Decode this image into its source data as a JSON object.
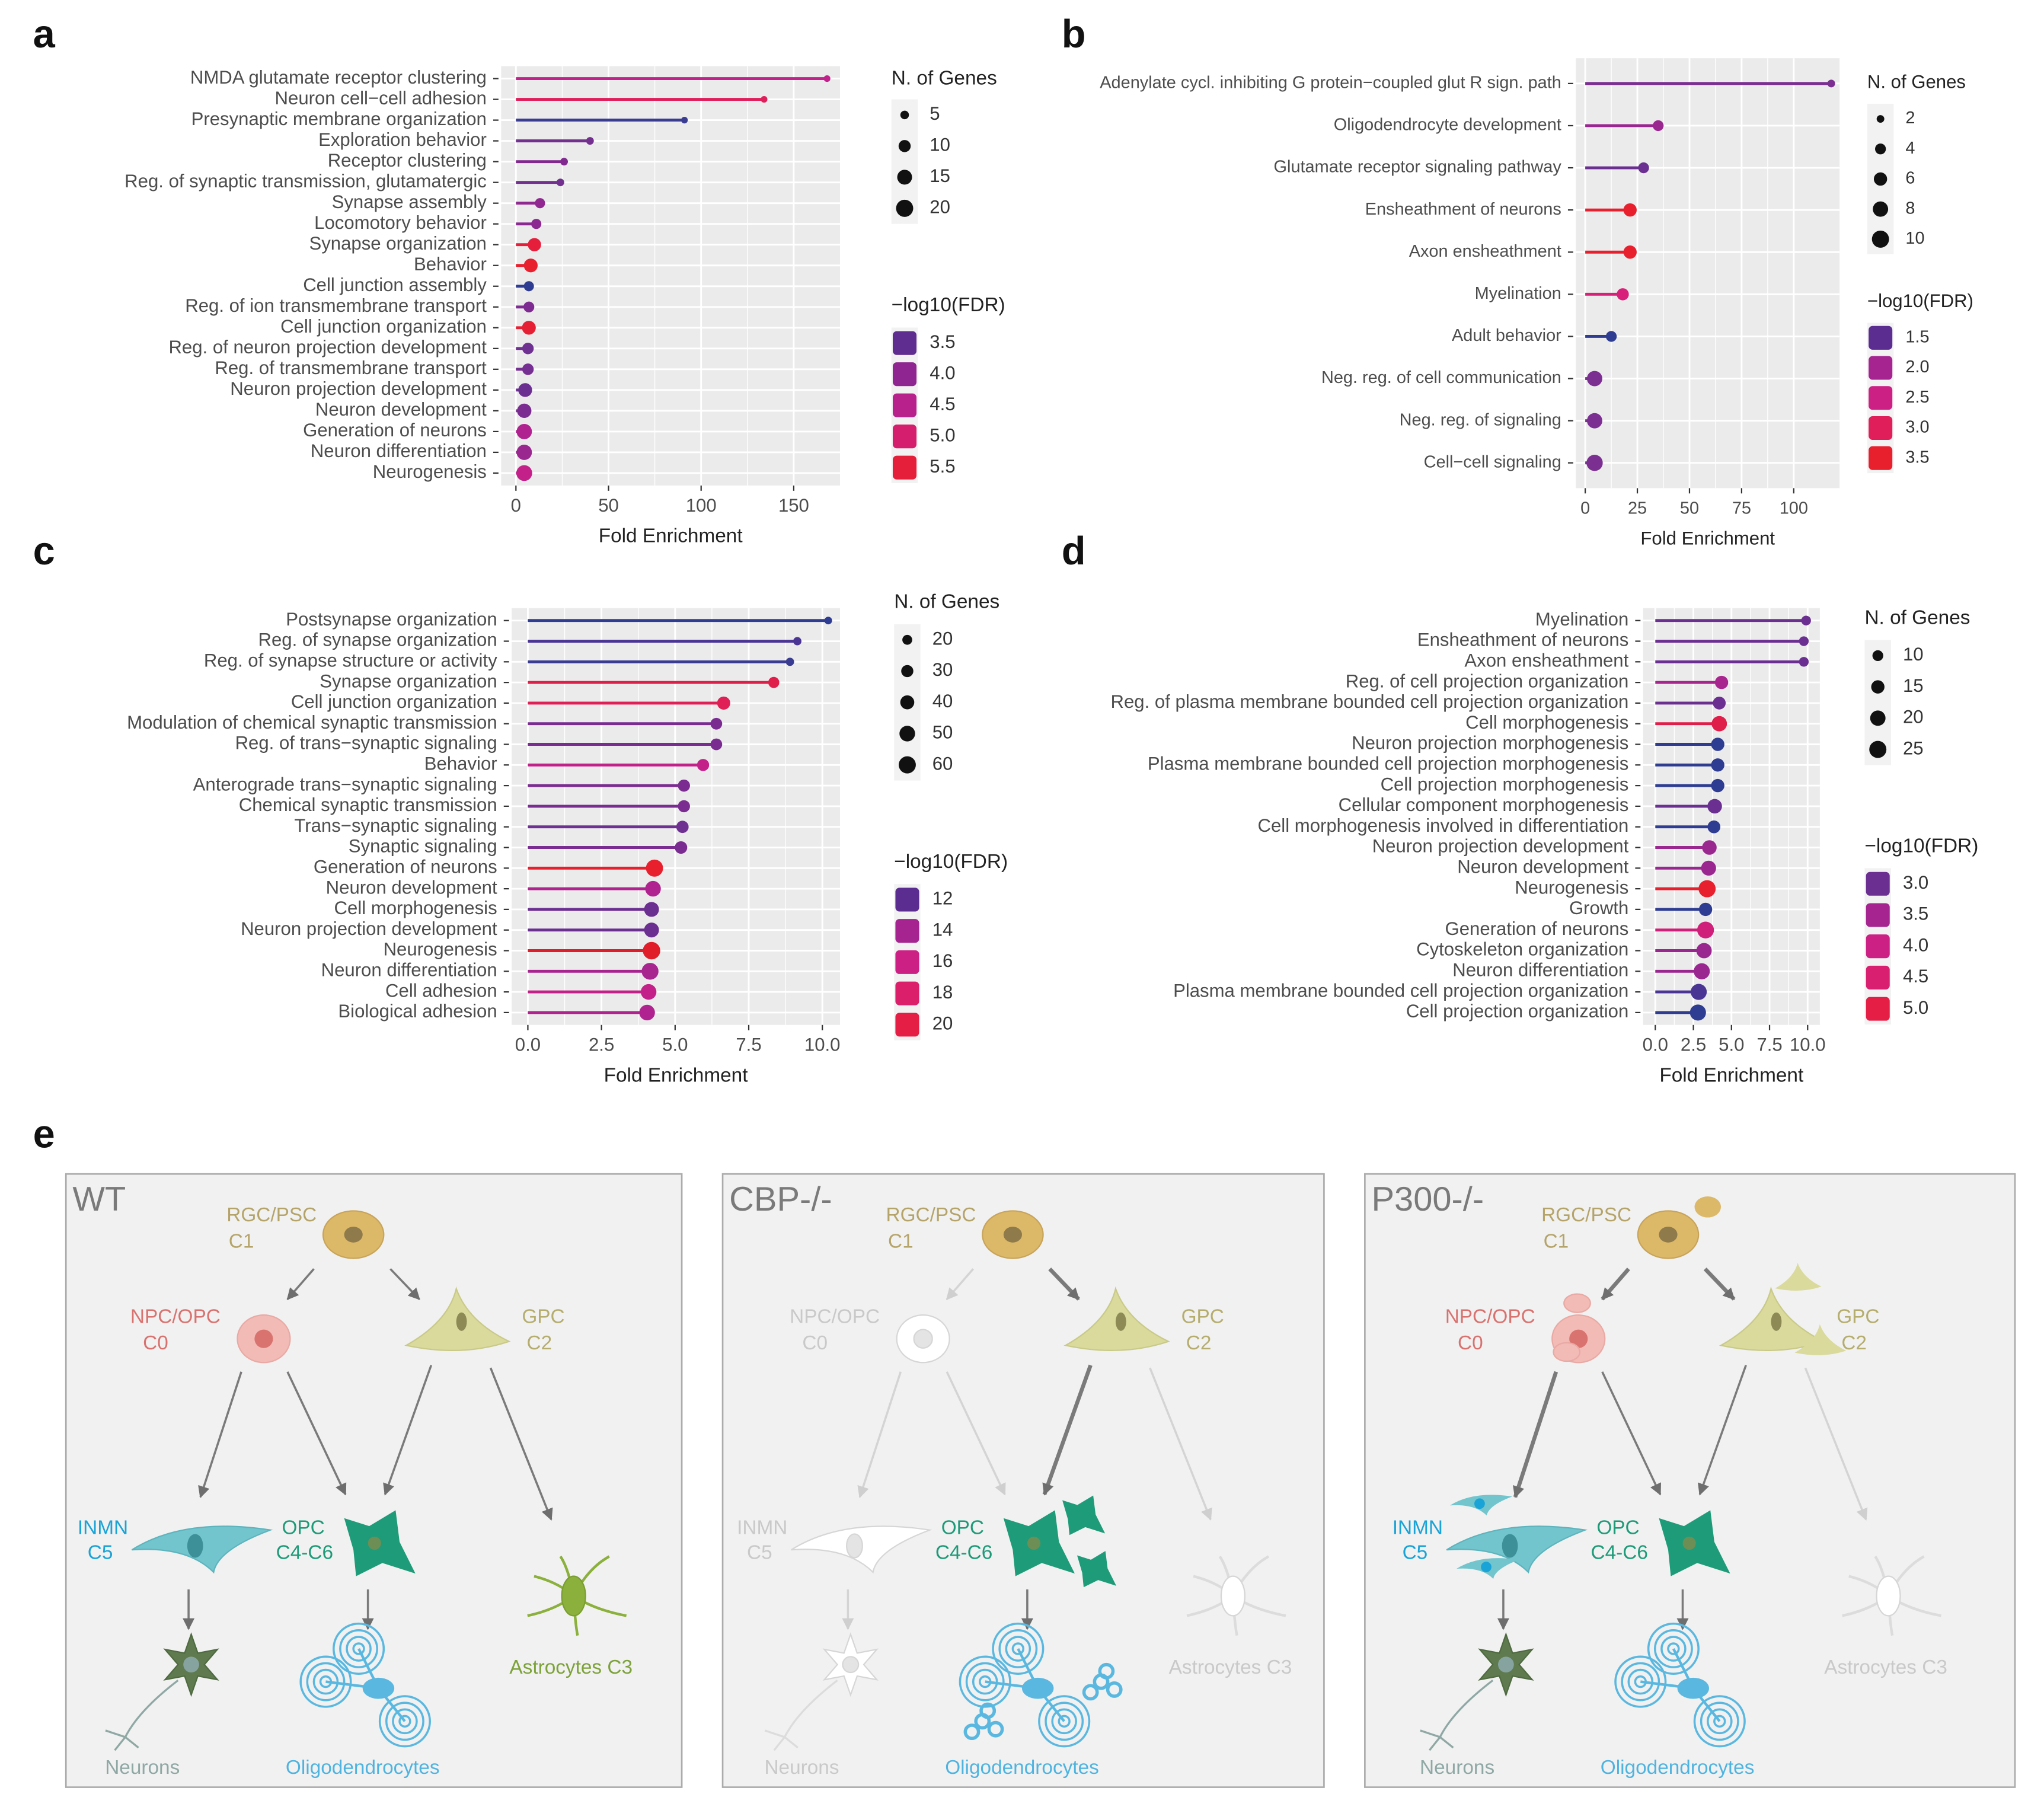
{
  "chart_data": [
    {
      "type": "lollipop",
      "label": "a",
      "xlabel": "Fold Enrichment",
      "categories": [
        "NMDA glutamate receptor clustering",
        "Neuron cell−cell adhesion",
        "Presynaptic membrane organization",
        "Exploration behavior",
        "Receptor clustering",
        "Reg. of synaptic transmission, glutamatergic",
        "Synapse assembly",
        "Locomotory behavior",
        "Synapse organization",
        "Behavior",
        "Cell junction assembly",
        "Reg. of ion transmembrane transport",
        "Cell junction organization",
        "Reg. of neuron projection development",
        "Reg. of transmembrane transport",
        "Neuron projection development",
        "Neuron development",
        "Generation of neurons",
        "Neuron differentiation",
        "Neurogenesis"
      ],
      "values": [
        168,
        134,
        91,
        40,
        26,
        24,
        13,
        11,
        10,
        8,
        7,
        7,
        7,
        6.5,
        6.5,
        5,
        4.5,
        4.5,
        4.5,
        4.5
      ],
      "sizes": [
        3,
        3,
        3,
        4,
        4,
        4,
        7,
        7,
        12,
        13,
        7,
        8,
        13,
        9,
        9,
        13,
        14,
        16,
        16,
        17
      ],
      "colors": [
        "#c2208a",
        "#df1f5c",
        "#3a3c92",
        "#73308f",
        "#82298f",
        "#72308f",
        "#912790",
        "#8b2891",
        "#e51e3c",
        "#e8202e",
        "#2e3c91",
        "#7d2b91",
        "#e62034",
        "#6e3091",
        "#752e91",
        "#6b2f91",
        "#7a2c91",
        "#b0228f",
        "#9a2690",
        "#c4208a"
      ],
      "xlim": [
        -8,
        175
      ],
      "xticks": [
        0,
        50,
        100,
        150
      ],
      "size_legend": {
        "title": "N. of Genes",
        "ticks": [
          5,
          10,
          15,
          20
        ]
      },
      "color_legend": {
        "title": "−log10(FDR)",
        "ticks": [
          3.5,
          {
            "value": 4,
            "label": "4.0"
          },
          4.5,
          {
            "value": 5,
            "label": "5.0"
          },
          5.5
        ],
        "colors": [
          "#5e2d8f",
          "#8f2590",
          "#b8218c",
          "#d51f6e",
          "#e51e3a"
        ]
      }
    },
    {
      "type": "lollipop",
      "label": "b",
      "xlabel": "Fold Enrichment",
      "categories": [
        "Adenylate cycl. inhibiting G protein−coupled glut R sign. path",
        "Oligodendrocyte development",
        "Glutamate receptor signaling pathway",
        "Ensheathment of neurons",
        "Axon ensheathment",
        "Myelination",
        "Adult behavior",
        "Neg. reg. of cell communication",
        "Neg. reg. of signaling",
        "Cell−cell signaling"
      ],
      "values": [
        118,
        35,
        28,
        21.5,
        21.5,
        18,
        12.5,
        4.5,
        4.5,
        4.5
      ],
      "sizes": [
        2,
        4,
        4,
        6,
        6,
        5,
        4,
        8,
        8,
        9
      ],
      "colors": [
        "#7a2f91",
        "#9a2690",
        "#6b2f91",
        "#e8202e",
        "#e8202e",
        "#d8207a",
        "#2e3c91",
        "#7a2f91",
        "#7a2f91",
        "#7a2f91"
      ],
      "xlim": [
        -4.5,
        122
      ],
      "xticks": [
        0,
        25,
        50,
        75,
        100
      ],
      "size_legend": {
        "title": "N. of Genes",
        "ticks": [
          2,
          4,
          6,
          8,
          10
        ]
      },
      "color_legend": {
        "title": "−log10(FDR)",
        "ticks": [
          1.5,
          {
            "value": 2,
            "label": "2.0"
          },
          2.5,
          {
            "value": 3,
            "label": "3.0"
          },
          3.5
        ],
        "colors": [
          "#5b2d90",
          "#a52490",
          "#cc2085",
          "#e01f5a",
          "#e8202e"
        ]
      }
    },
    {
      "type": "lollipop",
      "label": "c",
      "xlabel": "Fold Enrichment",
      "categories": [
        "Postsynapse organization",
        "Reg. of synapse organization",
        "Reg. of synapse structure or activity",
        "Synapse organization",
        "Cell junction organization",
        "Modulation of chemical synaptic transmission",
        "Reg. of trans−synaptic signaling",
        "Behavior",
        "Anterograde trans−synaptic signaling",
        "Chemical synaptic transmission",
        "Trans−synaptic signaling",
        "Synaptic signaling",
        "Generation of neurons",
        "Neuron development",
        "Cell morphogenesis",
        "Neuron projection development",
        "Neurogenesis",
        "Neuron differentiation",
        "Cell adhesion",
        "Biological adhesion"
      ],
      "values": [
        10.2,
        9.15,
        8.9,
        8.35,
        6.65,
        6.4,
        6.4,
        5.95,
        5.3,
        5.3,
        5.25,
        5.2,
        4.3,
        4.25,
        4.2,
        4.2,
        4.2,
        4.15,
        4.1,
        4.05
      ],
      "sizes": [
        12,
        14,
        14,
        25,
        35,
        28,
        28,
        30,
        30,
        30,
        31,
        32,
        60,
        50,
        45,
        45,
        62,
        58,
        50,
        50
      ],
      "colors": [
        "#2e3c91",
        "#4a3595",
        "#3a3c92",
        "#e01e4a",
        "#df1f55",
        "#7a2c91",
        "#7a2c91",
        "#c4208a",
        "#7a2c91",
        "#7a2c91",
        "#6e3091",
        "#7a2c91",
        "#e8202e",
        "#b0228f",
        "#6b2f91",
        "#6b2f91",
        "#e01e2a",
        "#a8248f",
        "#c4208a",
        "#b0228f"
      ],
      "xlim": [
        -0.55,
        10.6
      ],
      "xticks": [
        {
          "value": 0,
          "label": "0.0"
        },
        2.5,
        {
          "value": 5,
          "label": "5.0"
        },
        7.5,
        {
          "value": 10,
          "label": "10.0"
        }
      ],
      "size_legend": {
        "title": "N. of Genes",
        "ticks": [
          20,
          30,
          40,
          50,
          60
        ]
      },
      "color_legend": {
        "title": "−log10(FDR)",
        "ticks": [
          12,
          14,
          16,
          18,
          20
        ],
        "colors": [
          "#5b2d90",
          "#a52490",
          "#cc2085",
          "#db1f6a",
          "#e51e45"
        ]
      }
    },
    {
      "type": "lollipop",
      "label": "d",
      "xlabel": "Fold Enrichment",
      "categories": [
        "Myelination",
        "Ensheathment of neurons",
        "Axon ensheathment",
        "Reg. of cell projection organization",
        "Reg. of plasma membrane bounded cell projection organization",
        "Cell morphogenesis",
        "Neuron projection morphogenesis",
        "Plasma membrane bounded cell projection morphogenesis",
        "Cell projection morphogenesis",
        "Cellular component morphogenesis",
        "Cell morphogenesis involved in differentiation",
        "Neuron projection development",
        "Neuron development",
        "Neurogenesis",
        "Growth",
        "Generation of neurons",
        "Cytoskeleton organization",
        "Neuron differentiation",
        "Plasma membrane bounded cell projection organization",
        "Cell projection organization"
      ],
      "values": [
        9.9,
        9.75,
        9.75,
        4.35,
        4.2,
        4.2,
        4.1,
        4.1,
        4.1,
        3.9,
        3.85,
        3.55,
        3.5,
        3.4,
        3.3,
        3.3,
        3.2,
        3.05,
        2.85,
        2.8
      ],
      "sizes": [
        8,
        8,
        8,
        15,
        14,
        20,
        15,
        15,
        15,
        18,
        14,
        18,
        19,
        25,
        15,
        24,
        20,
        22,
        22,
        22
      ],
      "colors": [
        "#6b2f91",
        "#6b2f91",
        "#6b2f91",
        "#a8248f",
        "#6b2f91",
        "#e01e4a",
        "#2e3c91",
        "#2e3c91",
        "#2e3c91",
        "#6b2f91",
        "#2e3c91",
        "#9a2690",
        "#9a2690",
        "#e8202e",
        "#2e3c91",
        "#d01f7a",
        "#9a2690",
        "#9a2690",
        "#4a3595",
        "#2e3c91"
      ],
      "xlim": [
        -0.8,
        10.8
      ],
      "xticks": [
        {
          "value": 0,
          "label": "0.0"
        },
        2.5,
        {
          "value": 5,
          "label": "5.0"
        },
        7.5,
        {
          "value": 10,
          "label": "10.0"
        }
      ],
      "size_legend": {
        "title": "N. of Genes",
        "ticks": [
          10,
          15,
          20,
          25
        ]
      },
      "color_legend": {
        "title": "−log10(FDR)",
        "ticks": [
          {
            "value": 3,
            "label": "3.0"
          },
          3.5,
          {
            "value": 4,
            "label": "4.0"
          },
          4.5,
          {
            "value": 5,
            "label": "5.0"
          }
        ],
        "colors": [
          "#6b2f91",
          "#a52490",
          "#cc2085",
          "#d81f70",
          "#e51e45"
        ]
      }
    }
  ],
  "diagram": {
    "label": "e",
    "panels": [
      {
        "title": "WT",
        "labels": [
          "RGC/PSC",
          "C1",
          "NPC/OPC",
          "C0",
          "GPC",
          "C2",
          "INMN",
          "C5",
          "OPC",
          "C4-C6",
          "Astrocytes C3",
          "Neurons",
          "Oligodendrocytes"
        ]
      },
      {
        "title": "CBP-/-",
        "labels": [
          "RGC/PSC",
          "C1",
          "NPC/OPC",
          "C0",
          "GPC",
          "C2",
          "INMN",
          "C5",
          "OPC",
          "C4-C6",
          "Astrocytes C3",
          "Neurons",
          "Oligodendrocytes"
        ]
      },
      {
        "title": "P300-/-",
        "labels": [
          "RGC/PSC",
          "C1",
          "NPC/OPC",
          "C0",
          "GPC",
          "C2",
          "INMN",
          "C5",
          "OPC",
          "C4-C6",
          "Astrocytes C3",
          "Neurons",
          "Oligodendrocytes"
        ]
      }
    ]
  }
}
